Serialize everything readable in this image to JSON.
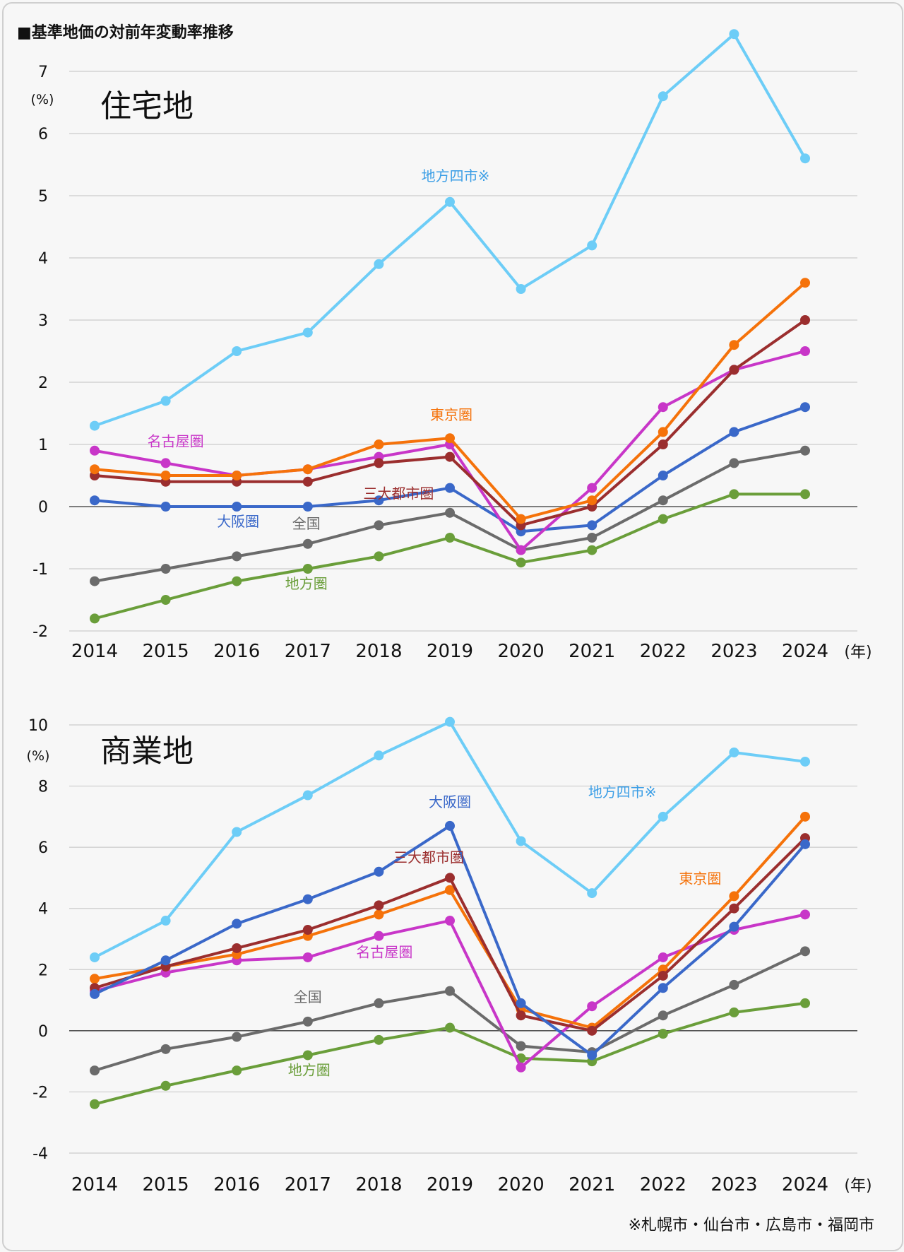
{
  "page": {
    "title": "■基準地価の対前年変動率推移",
    "footnote": "※札幌市・仙台市・広島市・福岡市"
  },
  "colors": {
    "chihou_yonshi": "#6dcdf7",
    "tokyo": "#f5720a",
    "sandai": "#9b2e2e",
    "nagoya": "#c836c8",
    "osaka": "#3a68c9",
    "zenkoku": "#6b6b6b",
    "chihouken": "#6a9e3a",
    "grid": "#cccccc",
    "zero_line": "#555555"
  },
  "chart_data": [
    {
      "type": "line",
      "title": "住宅地",
      "ylabel": "(%)",
      "xunit": "(年)",
      "ylim": [
        -2,
        7
      ],
      "yticks": [
        "-2",
        "-1",
        "0",
        "1",
        "2",
        "3",
        "4",
        "5",
        "6",
        "7"
      ],
      "categories": [
        "2014",
        "2015",
        "2016",
        "2017",
        "2018",
        "2019",
        "2020",
        "2021",
        "2022",
        "2023",
        "2024"
      ],
      "series": [
        {
          "name": "地方四市※",
          "color_key": "chihou_yonshi",
          "values": [
            1.3,
            1.7,
            2.5,
            2.8,
            3.9,
            4.9,
            3.5,
            4.2,
            6.6,
            7.6,
            5.6
          ]
        },
        {
          "name": "東京圏",
          "color_key": "tokyo",
          "values": [
            0.6,
            0.5,
            0.5,
            0.6,
            1.0,
            1.1,
            -0.2,
            0.1,
            1.2,
            2.6,
            3.6
          ]
        },
        {
          "name": "三大都市圏",
          "color_key": "sandai",
          "values": [
            0.5,
            0.4,
            0.4,
            0.4,
            0.7,
            0.8,
            -0.3,
            0.0,
            1.0,
            2.2,
            3.0
          ]
        },
        {
          "name": "名古屋圏",
          "color_key": "nagoya",
          "values": [
            0.9,
            0.7,
            0.5,
            0.6,
            0.8,
            1.0,
            -0.7,
            0.3,
            1.6,
            2.2,
            2.5
          ]
        },
        {
          "name": "大阪圏",
          "color_key": "osaka",
          "values": [
            0.1,
            0.0,
            0.0,
            0.0,
            0.1,
            0.3,
            -0.4,
            -0.3,
            0.5,
            1.2,
            1.6
          ]
        },
        {
          "name": "全国",
          "color_key": "zenkoku",
          "values": [
            -1.2,
            -1.0,
            -0.8,
            -0.6,
            -0.3,
            -0.1,
            -0.7,
            -0.5,
            0.1,
            0.7,
            0.9
          ]
        },
        {
          "name": "地方圏",
          "color_key": "chihouken",
          "values": [
            -1.8,
            -1.5,
            -1.2,
            -1.0,
            -0.8,
            -0.5,
            -0.9,
            -0.7,
            -0.2,
            0.2,
            0.2
          ]
        }
      ]
    },
    {
      "type": "line",
      "title": "商業地",
      "ylabel": "(%)",
      "xunit": "(年)",
      "ylim": [
        -4,
        10
      ],
      "yticks": [
        "-4",
        "-2",
        "0",
        "2",
        "4",
        "6",
        "8",
        "10"
      ],
      "categories": [
        "2014",
        "2015",
        "2016",
        "2017",
        "2018",
        "2019",
        "2020",
        "2021",
        "2022",
        "2023",
        "2024"
      ],
      "series": [
        {
          "name": "地方四市※",
          "color_key": "chihou_yonshi",
          "values": [
            2.4,
            3.6,
            6.5,
            7.7,
            9.0,
            10.1,
            6.2,
            4.5,
            7.0,
            9.1,
            8.8
          ]
        },
        {
          "name": "大阪圏",
          "color_key": "osaka",
          "values": [
            1.2,
            2.3,
            3.5,
            4.3,
            5.2,
            6.7,
            0.9,
            -0.8,
            1.4,
            3.4,
            6.1
          ]
        },
        {
          "name": "三大都市圏",
          "color_key": "sandai",
          "values": [
            1.4,
            2.1,
            2.7,
            3.3,
            4.1,
            5.0,
            0.5,
            0.0,
            1.8,
            4.0,
            6.3
          ]
        },
        {
          "name": "東京圏",
          "color_key": "tokyo",
          "values": [
            1.7,
            2.1,
            2.5,
            3.1,
            3.8,
            4.6,
            0.7,
            0.1,
            2.0,
            4.4,
            7.0
          ]
        },
        {
          "name": "名古屋圏",
          "color_key": "nagoya",
          "values": [
            1.3,
            1.9,
            2.3,
            2.4,
            3.1,
            3.6,
            -1.2,
            0.8,
            2.4,
            3.3,
            3.8
          ]
        },
        {
          "name": "全国",
          "color_key": "zenkoku",
          "values": [
            -1.3,
            -0.6,
            -0.2,
            0.3,
            0.9,
            1.3,
            -0.5,
            -0.7,
            0.5,
            1.5,
            2.6
          ]
        },
        {
          "name": "地方圏",
          "color_key": "chihouken",
          "values": [
            -2.4,
            -1.8,
            -1.3,
            -0.8,
            -0.3,
            0.1,
            -0.9,
            -1.0,
            -0.1,
            0.6,
            0.9
          ]
        }
      ]
    }
  ]
}
